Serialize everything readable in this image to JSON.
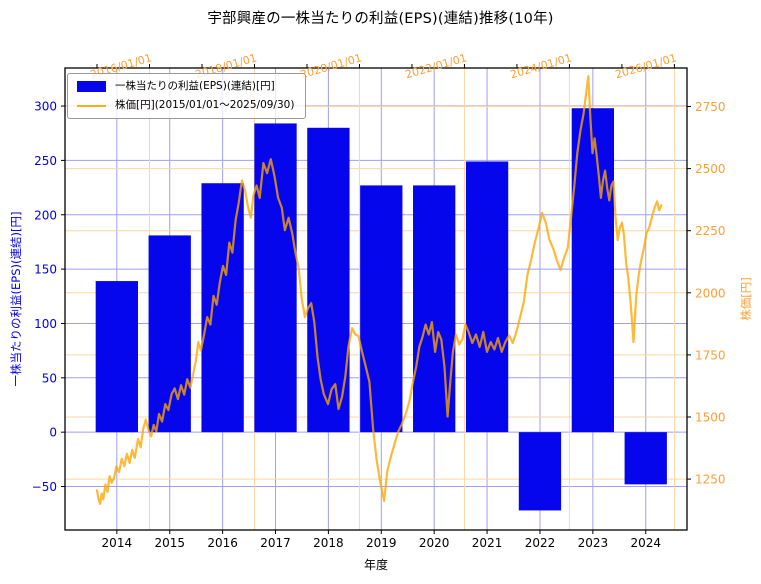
{
  "chart_data": {
    "type": "bar+line",
    "title": "宇部興産の一株当たりの利益(EPS)(連結)推移(10年)",
    "grid": {
      "blue": "#9f9ff5",
      "orange": "#ffd6a0"
    },
    "bar_series": {
      "name": "一株当たりの利益(EPS)(連結)[円]",
      "color": "#0606ec",
      "width_years": 0.8,
      "categories": [
        2014,
        2015,
        2016,
        2017,
        2018,
        2019,
        2020,
        2021,
        2022,
        2023,
        2024
      ],
      "values": [
        139,
        181,
        229,
        284,
        280,
        227,
        227,
        249,
        -72,
        298,
        -48
      ]
    },
    "line_series": {
      "name": "株価[円](2015/01/01～2025/09/30)",
      "color": "#ffa500",
      "opacity": 0.78,
      "points": [
        [
          2015.0,
          1205
        ],
        [
          2015.03,
          1168
        ],
        [
          2015.06,
          1150
        ],
        [
          2015.09,
          1192
        ],
        [
          2015.12,
          1168
        ],
        [
          2015.16,
          1228
        ],
        [
          2015.2,
          1198
        ],
        [
          2015.24,
          1262
        ],
        [
          2015.28,
          1235
        ],
        [
          2015.33,
          1258
        ],
        [
          2015.37,
          1302
        ],
        [
          2015.42,
          1278
        ],
        [
          2015.47,
          1332
        ],
        [
          2015.52,
          1302
        ],
        [
          2015.57,
          1352
        ],
        [
          2015.62,
          1315
        ],
        [
          2015.67,
          1368
        ],
        [
          2015.72,
          1335
        ],
        [
          2015.78,
          1412
        ],
        [
          2015.83,
          1378
        ],
        [
          2015.88,
          1452
        ],
        [
          2015.93,
          1490
        ],
        [
          2015.98,
          1448
        ],
        [
          2016.03,
          1422
        ],
        [
          2016.08,
          1468
        ],
        [
          2016.13,
          1442
        ],
        [
          2016.18,
          1512
        ],
        [
          2016.24,
          1482
        ],
        [
          2016.3,
          1552
        ],
        [
          2016.36,
          1528
        ],
        [
          2016.42,
          1592
        ],
        [
          2016.48,
          1615
        ],
        [
          2016.54,
          1572
        ],
        [
          2016.6,
          1628
        ],
        [
          2016.66,
          1590
        ],
        [
          2016.72,
          1652
        ],
        [
          2016.78,
          1618
        ],
        [
          2016.84,
          1682
        ],
        [
          2016.88,
          1722
        ],
        [
          2016.93,
          1802
        ],
        [
          2016.98,
          1768
        ],
        [
          2017.04,
          1832
        ],
        [
          2017.1,
          1902
        ],
        [
          2017.16,
          1872
        ],
        [
          2017.22,
          1988
        ],
        [
          2017.28,
          1952
        ],
        [
          2017.34,
          2042
        ],
        [
          2017.4,
          2108
        ],
        [
          2017.46,
          2072
        ],
        [
          2017.52,
          2202
        ],
        [
          2017.58,
          2162
        ],
        [
          2017.64,
          2292
        ],
        [
          2017.7,
          2362
        ],
        [
          2017.76,
          2452
        ],
        [
          2017.82,
          2412
        ],
        [
          2017.88,
          2342
        ],
        [
          2017.93,
          2302
        ],
        [
          2017.98,
          2392
        ],
        [
          2018.04,
          2432
        ],
        [
          2018.1,
          2382
        ],
        [
          2018.17,
          2522
        ],
        [
          2018.24,
          2482
        ],
        [
          2018.31,
          2538
        ],
        [
          2018.38,
          2472
        ],
        [
          2018.45,
          2382
        ],
        [
          2018.52,
          2342
        ],
        [
          2018.58,
          2252
        ],
        [
          2018.65,
          2302
        ],
        [
          2018.72,
          2238
        ],
        [
          2018.78,
          2162
        ],
        [
          2018.84,
          2102
        ],
        [
          2018.9,
          1978
        ],
        [
          2018.96,
          1902
        ],
        [
          2019.02,
          1938
        ],
        [
          2019.08,
          1958
        ],
        [
          2019.14,
          1882
        ],
        [
          2019.2,
          1742
        ],
        [
          2019.26,
          1652
        ],
        [
          2019.32,
          1592
        ],
        [
          2019.4,
          1552
        ],
        [
          2019.47,
          1612
        ],
        [
          2019.54,
          1632
        ],
        [
          2019.6,
          1532
        ],
        [
          2019.67,
          1582
        ],
        [
          2019.73,
          1662
        ],
        [
          2019.79,
          1782
        ],
        [
          2019.86,
          1858
        ],
        [
          2019.92,
          1832
        ],
        [
          2019.98,
          1826
        ],
        [
          2020.05,
          1762
        ],
        [
          2020.12,
          1702
        ],
        [
          2020.19,
          1642
        ],
        [
          2020.26,
          1452
        ],
        [
          2020.33,
          1322
        ],
        [
          2020.4,
          1232
        ],
        [
          2020.47,
          1162
        ],
        [
          2020.53,
          1282
        ],
        [
          2020.6,
          1342
        ],
        [
          2020.67,
          1392
        ],
        [
          2020.74,
          1442
        ],
        [
          2020.81,
          1472
        ],
        [
          2020.88,
          1512
        ],
        [
          2020.95,
          1562
        ],
        [
          2021.02,
          1642
        ],
        [
          2021.08,
          1702
        ],
        [
          2021.14,
          1782
        ],
        [
          2021.2,
          1822
        ],
        [
          2021.26,
          1872
        ],
        [
          2021.32,
          1832
        ],
        [
          2021.38,
          1882
        ],
        [
          2021.44,
          1762
        ],
        [
          2021.5,
          1842
        ],
        [
          2021.56,
          1812
        ],
        [
          2021.62,
          1702
        ],
        [
          2021.68,
          1502
        ],
        [
          2021.73,
          1642
        ],
        [
          2021.78,
          1762
        ],
        [
          2021.84,
          1832
        ],
        [
          2021.9,
          1792
        ],
        [
          2021.96,
          1812
        ],
        [
          2022.02,
          1872
        ],
        [
          2022.08,
          1842
        ],
        [
          2022.15,
          1798
        ],
        [
          2022.22,
          1832
        ],
        [
          2022.29,
          1782
        ],
        [
          2022.36,
          1842
        ],
        [
          2022.43,
          1762
        ],
        [
          2022.5,
          1802
        ],
        [
          2022.57,
          1772
        ],
        [
          2022.64,
          1818
        ],
        [
          2022.71,
          1762
        ],
        [
          2022.78,
          1802
        ],
        [
          2022.85,
          1828
        ],
        [
          2022.92,
          1798
        ],
        [
          2022.99,
          1842
        ],
        [
          2023.06,
          1902
        ],
        [
          2023.13,
          1962
        ],
        [
          2023.2,
          2072
        ],
        [
          2023.27,
          2132
        ],
        [
          2023.34,
          2202
        ],
        [
          2023.41,
          2258
        ],
        [
          2023.48,
          2322
        ],
        [
          2023.55,
          2282
        ],
        [
          2023.62,
          2212
        ],
        [
          2023.69,
          2178
        ],
        [
          2023.76,
          2132
        ],
        [
          2023.83,
          2092
        ],
        [
          2023.9,
          2142
        ],
        [
          2023.97,
          2182
        ],
        [
          2024.03,
          2302
        ],
        [
          2024.09,
          2422
        ],
        [
          2024.15,
          2562
        ],
        [
          2024.21,
          2652
        ],
        [
          2024.27,
          2722
        ],
        [
          2024.33,
          2822
        ],
        [
          2024.36,
          2872
        ],
        [
          2024.4,
          2702
        ],
        [
          2024.44,
          2562
        ],
        [
          2024.48,
          2622
        ],
        [
          2024.52,
          2552
        ],
        [
          2024.56,
          2472
        ],
        [
          2024.6,
          2382
        ],
        [
          2024.64,
          2452
        ],
        [
          2024.68,
          2492
        ],
        [
          2024.72,
          2422
        ],
        [
          2024.76,
          2372
        ],
        [
          2024.8,
          2432
        ],
        [
          2024.84,
          2448
        ],
        [
          2024.88,
          2302
        ],
        [
          2024.92,
          2212
        ],
        [
          2024.96,
          2262
        ],
        [
          2025.0,
          2282
        ],
        [
          2025.04,
          2232
        ],
        [
          2025.08,
          2122
        ],
        [
          2025.12,
          2062
        ],
        [
          2025.17,
          1952
        ],
        [
          2025.22,
          1802
        ],
        [
          2025.27,
          1982
        ],
        [
          2025.32,
          2072
        ],
        [
          2025.37,
          2132
        ],
        [
          2025.42,
          2182
        ],
        [
          2025.47,
          2242
        ],
        [
          2025.52,
          2262
        ],
        [
          2025.57,
          2302
        ],
        [
          2025.62,
          2342
        ],
        [
          2025.67,
          2368
        ],
        [
          2025.71,
          2332
        ],
        [
          2025.75,
          2352
        ]
      ]
    },
    "axes": {
      "bottom": {
        "label": "年度",
        "color": "#000000",
        "range": [
          2013.02,
          2024.78
        ],
        "ticks": [
          {
            "v": 2014,
            "label": "2014"
          },
          {
            "v": 2015,
            "label": "2015"
          },
          {
            "v": 2016,
            "label": "2016"
          },
          {
            "v": 2017,
            "label": "2017"
          },
          {
            "v": 2018,
            "label": "2018"
          },
          {
            "v": 2019,
            "label": "2019"
          },
          {
            "v": 2020,
            "label": "2020"
          },
          {
            "v": 2021,
            "label": "2021"
          },
          {
            "v": 2022,
            "label": "2022"
          },
          {
            "v": 2023,
            "label": "2023"
          },
          {
            "v": 2024,
            "label": "2024"
          }
        ]
      },
      "top": {
        "color": "#ff9f33",
        "range": [
          2014.39,
          2026.24
        ],
        "label_rotation": -16,
        "minor_years": [
          2015,
          2016,
          2017,
          2018,
          2019,
          2020,
          2021,
          2022,
          2023,
          2024,
          2025,
          2026
        ],
        "major": [
          {
            "v": 2016,
            "label": "2016/01/01"
          },
          {
            "v": 2018,
            "label": "2018/01/01"
          },
          {
            "v": 2020,
            "label": "2020/01/01"
          },
          {
            "v": 2022,
            "label": "2022/01/01"
          },
          {
            "v": 2024,
            "label": "2024/01/01"
          },
          {
            "v": 2026,
            "label": "2026/01/01"
          }
        ]
      },
      "left": {
        "label": "一株当たりの利益(EPS)(連結)[円]",
        "color": "#0000e6",
        "range": [
          -90,
          335
        ],
        "ticks": [
          {
            "v": -50,
            "label": "−50"
          },
          {
            "v": 0,
            "label": "0"
          },
          {
            "v": 50,
            "label": "50"
          },
          {
            "v": 100,
            "label": "100"
          },
          {
            "v": 150,
            "label": "150"
          },
          {
            "v": 200,
            "label": "200"
          },
          {
            "v": 250,
            "label": "250"
          },
          {
            "v": 300,
            "label": "300"
          }
        ]
      },
      "right": {
        "label": "株価[円]",
        "color": "#ff9f33",
        "range": [
          1045,
          2905
        ],
        "ticks": [
          {
            "v": 1250,
            "label": "1250"
          },
          {
            "v": 1500,
            "label": "1500"
          },
          {
            "v": 1750,
            "label": "1750"
          },
          {
            "v": 2000,
            "label": "2000"
          },
          {
            "v": 2250,
            "label": "2250"
          },
          {
            "v": 2500,
            "label": "2500"
          },
          {
            "v": 2750,
            "label": "2750"
          }
        ]
      }
    }
  }
}
